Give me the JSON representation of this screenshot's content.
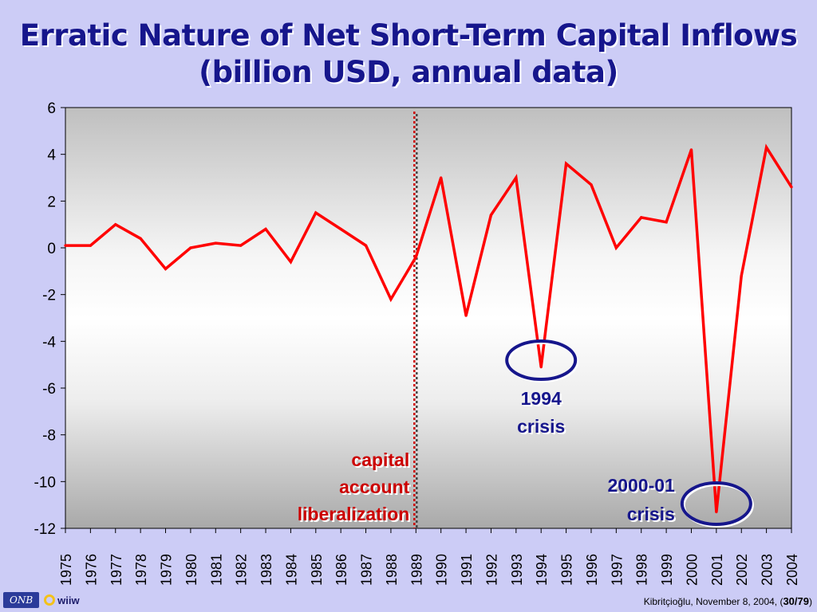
{
  "title_line1": "Erratic Nature of Net Short-Term Capital Inflows",
  "title_line2": "(billion USD, annual data)",
  "chart_data": {
    "type": "line",
    "x": [
      1975,
      1976,
      1977,
      1978,
      1979,
      1980,
      1981,
      1982,
      1983,
      1984,
      1985,
      1986,
      1987,
      1988,
      1989,
      1990,
      1991,
      1992,
      1993,
      1994,
      1995,
      1996,
      1997,
      1998,
      1999,
      2000,
      2001,
      2002,
      2003,
      2004
    ],
    "series": [
      {
        "values": [
          0.1,
          0.1,
          1.0,
          0.4,
          -0.9,
          0.0,
          0.2,
          0.1,
          0.8,
          -0.6,
          1.5,
          0.8,
          0.1,
          -2.2,
          -0.4,
          3.0,
          -2.9,
          1.4,
          3.0,
          -5.1,
          3.6,
          2.7,
          0.0,
          1.3,
          1.1,
          4.2,
          -11.3,
          -1.2,
          4.3,
          2.6
        ],
        "color": "#ff0000"
      }
    ],
    "ylim": [
      -12,
      6
    ],
    "yticks": [
      6,
      4,
      2,
      0,
      -2,
      -4,
      -6,
      -8,
      -10,
      -12
    ],
    "xlabel": "",
    "ylabel": "",
    "grid": false,
    "plot_background": "gradient-grey",
    "vertical_marker": {
      "x": 1989,
      "color_a": "#cc0000",
      "color_b": "#444444"
    },
    "annotations": [
      {
        "lines": [
          "capital",
          "account",
          "liberalization"
        ],
        "color": "#cc0000",
        "anchor_x": 1989
      },
      {
        "lines": [
          "1994",
          "crisis"
        ],
        "color": "#16168c",
        "circle_x": 1994
      },
      {
        "lines": [
          "2000-01",
          "crisis"
        ],
        "color": "#16168c",
        "circle_x": 2001
      }
    ]
  },
  "footer": {
    "logo1": "ONB",
    "logo2": "wiiw",
    "credit": "Kibritçioğlu, November 8, 2004, (",
    "page": "30/79",
    "credit_end": ")"
  }
}
